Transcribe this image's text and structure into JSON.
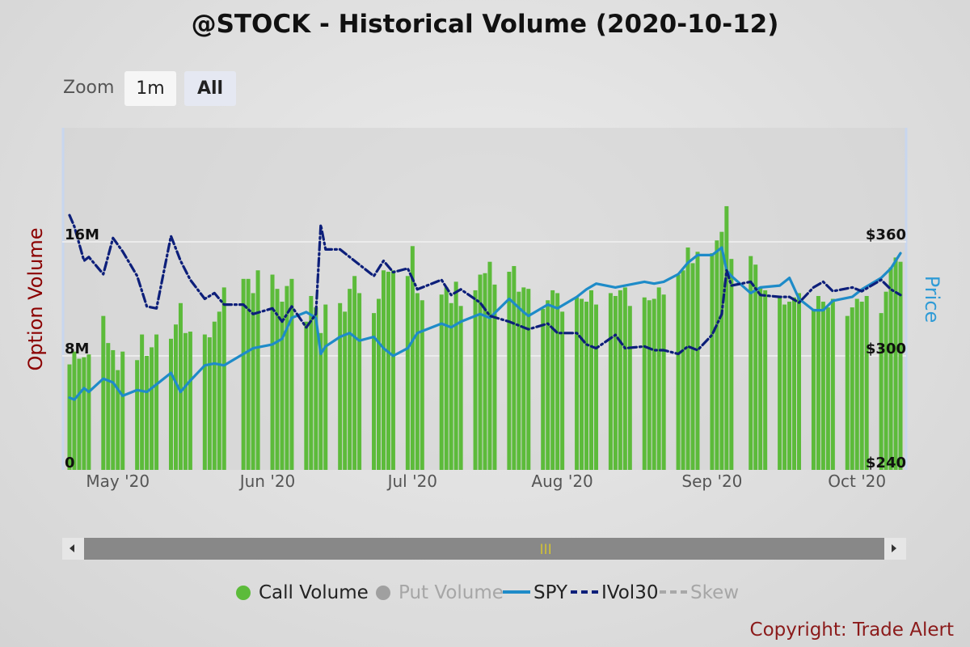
{
  "header": {
    "title": "@STOCK - Historical Volume (2020-10-12)"
  },
  "zoom": {
    "label": "Zoom",
    "buttons": [
      "1m",
      "All"
    ],
    "selected": "All"
  },
  "footer": {
    "copyright": "Copyright: Trade Alert"
  },
  "colors": {
    "call_volume": "#5cbb3a",
    "put_volume": "#a0a0a0",
    "spy": "#1e8bc8",
    "ivol30": "#0d1f7a",
    "skew": "#a8a8a8",
    "left_axis_title": "#8b0000",
    "right_axis_title": "#2f9bd6"
  },
  "chart_data": {
    "type": "bar",
    "title": "@STOCK - Historical Volume (2020-10-12)",
    "y_left": {
      "title": "Option Volume",
      "min": 0,
      "max": 24000000,
      "ticks": [
        0,
        8000000,
        16000000
      ],
      "tick_labels": [
        "0",
        "8M",
        "16M"
      ]
    },
    "y_right": {
      "title": "Price",
      "min": 240,
      "max": 420,
      "ticks": [
        240,
        300,
        360
      ],
      "tick_labels": [
        "$240",
        "$300",
        "$360"
      ]
    },
    "x_axis": {
      "start": "2020-04-20",
      "end": "2020-10-09",
      "ticks": [
        "2020-05-01",
        "2020-06-01",
        "2020-07-01",
        "2020-08-01",
        "2020-09-01",
        "2020-10-01"
      ],
      "tick_labels": [
        "May '20",
        "Jun '20",
        "Jul '20",
        "Aug '20",
        "Sep '20",
        "Oct '20"
      ]
    },
    "grid": true,
    "legend_position": "bottom-center",
    "series": [
      {
        "name": "Call Volume",
        "type": "bar",
        "axis": "left",
        "visible": true,
        "x": [
          "2020-04-20",
          "2020-04-21",
          "2020-04-22",
          "2020-04-23",
          "2020-04-24",
          "2020-04-27",
          "2020-04-28",
          "2020-04-29",
          "2020-04-30",
          "2020-05-01",
          "2020-05-04",
          "2020-05-05",
          "2020-05-06",
          "2020-05-07",
          "2020-05-08",
          "2020-05-11",
          "2020-05-12",
          "2020-05-13",
          "2020-05-14",
          "2020-05-15",
          "2020-05-18",
          "2020-05-19",
          "2020-05-20",
          "2020-05-21",
          "2020-05-22",
          "2020-05-26",
          "2020-05-27",
          "2020-05-28",
          "2020-05-29",
          "2020-06-01",
          "2020-06-02",
          "2020-06-03",
          "2020-06-04",
          "2020-06-05",
          "2020-06-08",
          "2020-06-09",
          "2020-06-10",
          "2020-06-11",
          "2020-06-12",
          "2020-06-15",
          "2020-06-16",
          "2020-06-17",
          "2020-06-18",
          "2020-06-19",
          "2020-06-22",
          "2020-06-23",
          "2020-06-24",
          "2020-06-25",
          "2020-06-26",
          "2020-06-29",
          "2020-06-30",
          "2020-07-01",
          "2020-07-02",
          "2020-07-06",
          "2020-07-07",
          "2020-07-08",
          "2020-07-09",
          "2020-07-10",
          "2020-07-13",
          "2020-07-14",
          "2020-07-15",
          "2020-07-16",
          "2020-07-17",
          "2020-07-20",
          "2020-07-21",
          "2020-07-22",
          "2020-07-23",
          "2020-07-24",
          "2020-07-27",
          "2020-07-28",
          "2020-07-29",
          "2020-07-30",
          "2020-07-31",
          "2020-08-03",
          "2020-08-04",
          "2020-08-05",
          "2020-08-06",
          "2020-08-07",
          "2020-08-10",
          "2020-08-11",
          "2020-08-12",
          "2020-08-13",
          "2020-08-14",
          "2020-08-17",
          "2020-08-18",
          "2020-08-19",
          "2020-08-20",
          "2020-08-21",
          "2020-08-24",
          "2020-08-25",
          "2020-08-26",
          "2020-08-27",
          "2020-08-28",
          "2020-08-31",
          "2020-09-01",
          "2020-09-02",
          "2020-09-03",
          "2020-09-04",
          "2020-09-08",
          "2020-09-09",
          "2020-09-10",
          "2020-09-11",
          "2020-09-14",
          "2020-09-15",
          "2020-09-16",
          "2020-09-17",
          "2020-09-18",
          "2020-09-21",
          "2020-09-22",
          "2020-09-23",
          "2020-09-24",
          "2020-09-25",
          "2020-09-28",
          "2020-09-29",
          "2020-09-30",
          "2020-10-01",
          "2020-10-02",
          "2020-10-05",
          "2020-10-06",
          "2020-10-07",
          "2020-10-08",
          "2020-10-09"
        ],
        "values": [
          7400000,
          8300000,
          7800000,
          7900000,
          8100000,
          10800000,
          8900000,
          8400000,
          7000000,
          8300000,
          7700000,
          9500000,
          8000000,
          8600000,
          9500000,
          9200000,
          10200000,
          11700000,
          9600000,
          9700000,
          9500000,
          9300000,
          10400000,
          11100000,
          12800000,
          13400000,
          13400000,
          12400000,
          14000000,
          13700000,
          12700000,
          11800000,
          12900000,
          13400000,
          10400000,
          12200000,
          11400000,
          9600000,
          11600000,
          11700000,
          11100000,
          12700000,
          13600000,
          12400000,
          11000000,
          12000000,
          14000000,
          13900000,
          14000000,
          13600000,
          15700000,
          12400000,
          11900000,
          12300000,
          12800000,
          11700000,
          13200000,
          11500000,
          12600000,
          13700000,
          13800000,
          14600000,
          13000000,
          13900000,
          14300000,
          12500000,
          12800000,
          12700000,
          11300000,
          11900000,
          12600000,
          12400000,
          11100000,
          12100000,
          12000000,
          11800000,
          12600000,
          11600000,
          12400000,
          12200000,
          12600000,
          12800000,
          11500000,
          12100000,
          11900000,
          12000000,
          12800000,
          12300000,
          13700000,
          14000000,
          15600000,
          14500000,
          15300000,
          15200000,
          16100000,
          16700000,
          18500000,
          14800000,
          15000000,
          14400000,
          12800000,
          12600000,
          12100000,
          11600000,
          11800000,
          12100000,
          12400000,
          11300000,
          12200000,
          11800000,
          11400000,
          12000000,
          10800000,
          11400000,
          12000000,
          11800000,
          12200000,
          11000000,
          12500000,
          14200000,
          14900000,
          14600000
        ]
      },
      {
        "name": "Put Volume",
        "type": "bar",
        "axis": "left",
        "visible": false
      },
      {
        "name": "SPY",
        "type": "line",
        "axis": "right",
        "visible": true,
        "x": [
          "2020-04-20",
          "2020-04-21",
          "2020-04-23",
          "2020-04-24",
          "2020-04-27",
          "2020-04-29",
          "2020-05-01",
          "2020-05-04",
          "2020-05-06",
          "2020-05-08",
          "2020-05-11",
          "2020-05-13",
          "2020-05-15",
          "2020-05-18",
          "2020-05-20",
          "2020-05-22",
          "2020-05-26",
          "2020-05-28",
          "2020-06-01",
          "2020-06-03",
          "2020-06-05",
          "2020-06-08",
          "2020-06-10",
          "2020-06-11",
          "2020-06-12",
          "2020-06-15",
          "2020-06-17",
          "2020-06-19",
          "2020-06-22",
          "2020-06-24",
          "2020-06-26",
          "2020-06-29",
          "2020-07-01",
          "2020-07-06",
          "2020-07-08",
          "2020-07-10",
          "2020-07-14",
          "2020-07-16",
          "2020-07-20",
          "2020-07-23",
          "2020-07-24",
          "2020-07-28",
          "2020-07-30",
          "2020-08-03",
          "2020-08-05",
          "2020-08-07",
          "2020-08-11",
          "2020-08-13",
          "2020-08-17",
          "2020-08-19",
          "2020-08-21",
          "2020-08-24",
          "2020-08-26",
          "2020-08-28",
          "2020-08-31",
          "2020-09-02",
          "2020-09-03",
          "2020-09-04",
          "2020-09-08",
          "2020-09-10",
          "2020-09-14",
          "2020-09-16",
          "2020-09-18",
          "2020-09-21",
          "2020-09-23",
          "2020-09-25",
          "2020-09-29",
          "2020-10-01",
          "2020-10-05",
          "2020-10-07",
          "2020-10-09"
        ],
        "values": [
          278,
          277,
          283,
          281,
          288,
          286,
          279,
          282,
          281,
          285,
          291,
          281,
          287,
          295,
          296,
          295,
          301,
          304,
          306,
          309,
          320,
          323,
          320,
          301,
          305,
          310,
          312,
          308,
          310,
          304,
          300,
          304,
          312,
          317,
          315,
          318,
          322,
          320,
          330,
          323,
          321,
          327,
          325,
          331,
          335,
          338,
          336,
          337,
          339,
          338,
          339,
          343,
          349,
          353,
          353,
          357,
          345,
          342,
          333,
          336,
          337,
          341,
          330,
          324,
          324,
          329,
          331,
          335,
          341,
          346,
          354
        ]
      },
      {
        "name": "IVol30",
        "type": "line",
        "dash": "dashdot",
        "axis": "right",
        "visible": true,
        "x": [
          "2020-04-20",
          "2020-04-21",
          "2020-04-23",
          "2020-04-24",
          "2020-04-27",
          "2020-04-29",
          "2020-05-01",
          "2020-05-04",
          "2020-05-06",
          "2020-05-08",
          "2020-05-11",
          "2020-05-13",
          "2020-05-15",
          "2020-05-18",
          "2020-05-20",
          "2020-05-22",
          "2020-05-26",
          "2020-05-28",
          "2020-06-01",
          "2020-06-03",
          "2020-06-05",
          "2020-06-08",
          "2020-06-10",
          "2020-06-11",
          "2020-06-12",
          "2020-06-15",
          "2020-06-17",
          "2020-06-19",
          "2020-06-22",
          "2020-06-24",
          "2020-06-26",
          "2020-06-29",
          "2020-07-01",
          "2020-07-06",
          "2020-07-08",
          "2020-07-10",
          "2020-07-14",
          "2020-07-16",
          "2020-07-20",
          "2020-07-23",
          "2020-07-24",
          "2020-07-28",
          "2020-07-30",
          "2020-08-03",
          "2020-08-05",
          "2020-08-07",
          "2020-08-11",
          "2020-08-13",
          "2020-08-17",
          "2020-08-19",
          "2020-08-21",
          "2020-08-24",
          "2020-08-26",
          "2020-08-28",
          "2020-08-31",
          "2020-09-02",
          "2020-09-03",
          "2020-09-04",
          "2020-09-08",
          "2020-09-10",
          "2020-09-14",
          "2020-09-16",
          "2020-09-18",
          "2020-09-21",
          "2020-09-23",
          "2020-09-25",
          "2020-09-29",
          "2020-10-01",
          "2020-10-05",
          "2020-10-07",
          "2020-10-09"
        ],
        "values": [
          374,
          368,
          350,
          352,
          343,
          362,
          355,
          342,
          326,
          325,
          363,
          350,
          340,
          330,
          333,
          327,
          327,
          322,
          325,
          318,
          326,
          315,
          322,
          369,
          356,
          356,
          352,
          348,
          342,
          350,
          344,
          346,
          335,
          340,
          332,
          335,
          328,
          321,
          318,
          315,
          314,
          317,
          312,
          312,
          306,
          304,
          311,
          304,
          305,
          303,
          303,
          301,
          305,
          303,
          311,
          322,
          345,
          337,
          339,
          332,
          331,
          331,
          328,
          336,
          339,
          334,
          336,
          334,
          340,
          335,
          332
        ]
      },
      {
        "name": "Skew",
        "type": "line",
        "dash": "dash",
        "axis": "right",
        "visible": false
      }
    ]
  },
  "legend": [
    {
      "label": "Call Volume",
      "color": "#5cbb3a",
      "marker": "dot",
      "enabled": true
    },
    {
      "label": "Put Volume",
      "color": "#a0a0a0",
      "marker": "dot",
      "enabled": false
    },
    {
      "label": "SPY",
      "color": "#1e8bc8",
      "marker": "line",
      "enabled": true
    },
    {
      "label": "IVol30",
      "color": "#0d1f7a",
      "marker": "dashdot",
      "enabled": true
    },
    {
      "label": "Skew",
      "color": "#a8a8a8",
      "marker": "dash",
      "enabled": false
    }
  ]
}
